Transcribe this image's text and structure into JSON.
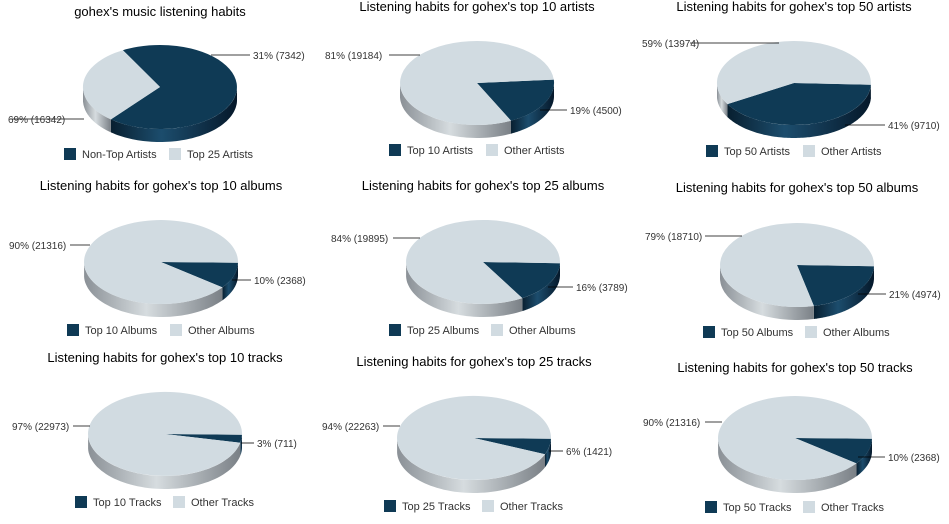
{
  "colors": {
    "top": "#0f3a55",
    "other": "#d1dbe1",
    "leader": "#000000"
  },
  "chart_data": [
    {
      "type": "pie",
      "title": "gohex's music listening habits",
      "slices": [
        {
          "name": "Non-Top Artists",
          "value": 16342,
          "percent": "69%",
          "label": "69%  (16342)",
          "kind": "top"
        },
        {
          "name": "Top 25 Artists",
          "value": 7342,
          "percent": "31%",
          "label": "31%  (7342)",
          "kind": "other"
        }
      ],
      "legend": [
        "Non-Top Artists",
        "Top 25 Artists"
      ]
    },
    {
      "type": "pie",
      "title": "Listening habits for gohex's top 10 artists",
      "slices": [
        {
          "name": "Top 10 Artists",
          "value": 4500,
          "percent": "19%",
          "label": "19%  (4500)",
          "kind": "top"
        },
        {
          "name": "Other Artists",
          "value": 19184,
          "percent": "81%",
          "label": "81%  (19184)",
          "kind": "other"
        }
      ],
      "legend": [
        "Top 10 Artists",
        "Other Artists"
      ]
    },
    {
      "type": "pie",
      "title": "Listening habits for gohex's top 50 artists",
      "slices": [
        {
          "name": "Top 50 Artists",
          "value": 9710,
          "percent": "41%",
          "label": "41%  (9710)",
          "kind": "top"
        },
        {
          "name": "Other Artists",
          "value": 13974,
          "percent": "59%",
          "label": "59%  (13974)",
          "kind": "other"
        }
      ],
      "legend": [
        "Top 50 Artists",
        "Other Artists"
      ]
    },
    {
      "type": "pie",
      "title": "Listening habits for gohex's top 10 albums",
      "slices": [
        {
          "name": "Top 10 Albums",
          "value": 2368,
          "percent": "10%",
          "label": "10%  (2368)",
          "kind": "top"
        },
        {
          "name": "Other Albums",
          "value": 21316,
          "percent": "90%",
          "label": "90%  (21316)",
          "kind": "other"
        }
      ],
      "legend": [
        "Top 10 Albums",
        "Other Albums"
      ]
    },
    {
      "type": "pie",
      "title": "Listening habits for gohex's top 25 albums",
      "slices": [
        {
          "name": "Top 25 Albums",
          "value": 3789,
          "percent": "16%",
          "label": "16%  (3789)",
          "kind": "top"
        },
        {
          "name": "Other Albums",
          "value": 19895,
          "percent": "84%",
          "label": "84%  (19895)",
          "kind": "other"
        }
      ],
      "legend": [
        "Top 25 Albums",
        "Other Albums"
      ]
    },
    {
      "type": "pie",
      "title": "Listening habits for gohex's top 50 albums",
      "slices": [
        {
          "name": "Top 50 Albums",
          "value": 4974,
          "percent": "21%",
          "label": "21%  (4974)",
          "kind": "top"
        },
        {
          "name": "Other Albums",
          "value": 18710,
          "percent": "79%",
          "label": "79%  (18710)",
          "kind": "other"
        }
      ],
      "legend": [
        "Top 50 Albums",
        "Other Albums"
      ]
    },
    {
      "type": "pie",
      "title": "Listening habits for gohex's top 10 tracks",
      "slices": [
        {
          "name": "Top 10 Tracks",
          "value": 711,
          "percent": "3%",
          "label": "3%  (711)",
          "kind": "top"
        },
        {
          "name": "Other Tracks",
          "value": 22973,
          "percent": "97%",
          "label": "97%  (22973)",
          "kind": "other"
        }
      ],
      "legend": [
        "Top 10 Tracks",
        "Other Tracks"
      ]
    },
    {
      "type": "pie",
      "title": "Listening habits for gohex's top 25 tracks",
      "slices": [
        {
          "name": "Top 25 Tracks",
          "value": 1421,
          "percent": "6%",
          "label": "6%  (1421)",
          "kind": "top"
        },
        {
          "name": "Other Tracks",
          "value": 22263,
          "percent": "94%",
          "label": "94%  (22263)",
          "kind": "other"
        }
      ],
      "legend": [
        "Top 25 Tracks",
        "Other Tracks"
      ]
    },
    {
      "type": "pie",
      "title": "Listening habits for gohex's top 50 tracks",
      "slices": [
        {
          "name": "Top 50 Tracks",
          "value": 2368,
          "percent": "10%",
          "label": "10%  (2368)",
          "kind": "top"
        },
        {
          "name": "Other Tracks",
          "value": 21316,
          "percent": "90%",
          "label": "90%  (21316)",
          "kind": "other"
        }
      ],
      "legend": [
        "Top 50 Tracks",
        "Other Tracks"
      ]
    }
  ]
}
